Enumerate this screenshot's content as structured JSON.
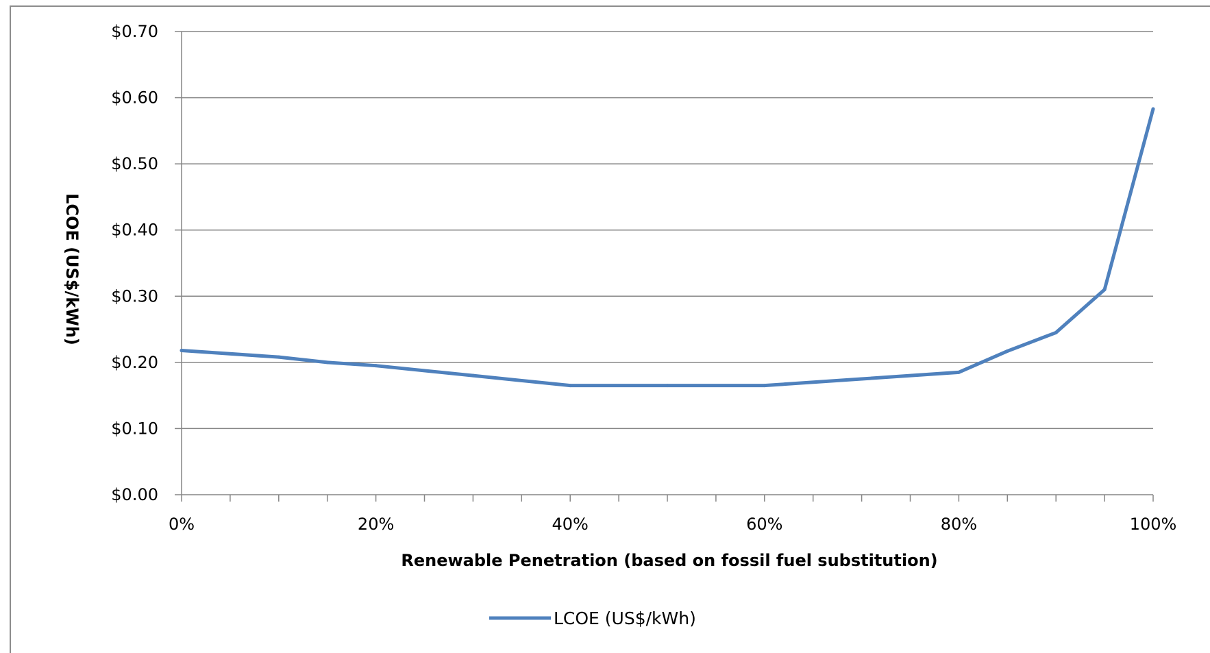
{
  "chart_data": {
    "type": "line",
    "title": "",
    "xlabel": "Renewable Penetration (based on fossil fuel substitution)",
    "ylabel": "LCOE (US$/kWh)",
    "xlim": [
      0,
      100
    ],
    "ylim": [
      0,
      0.7
    ],
    "x_ticks": [
      0,
      20,
      40,
      60,
      80,
      100
    ],
    "x_tick_labels": [
      "0%",
      "20%",
      "40%",
      "60%",
      "80%",
      "100%"
    ],
    "y_ticks": [
      0,
      0.1,
      0.2,
      0.3,
      0.4,
      0.5,
      0.6,
      0.7
    ],
    "y_tick_labels": [
      "$0.00",
      "$0.10",
      "$0.20",
      "$0.30",
      "$0.40",
      "$0.50",
      "$0.60",
      "$0.70"
    ],
    "grid": "horizontal",
    "legend_position": "bottom",
    "series": [
      {
        "name": "LCOE (US$/kWh)",
        "color": "#4f81bd",
        "x": [
          0,
          10,
          15,
          20,
          30,
          40,
          50,
          60,
          70,
          80,
          85,
          90,
          95,
          100
        ],
        "y": [
          0.218,
          0.208,
          0.2,
          0.195,
          0.18,
          0.165,
          0.165,
          0.165,
          0.175,
          0.185,
          0.217,
          0.245,
          0.31,
          0.583
        ]
      }
    ]
  }
}
